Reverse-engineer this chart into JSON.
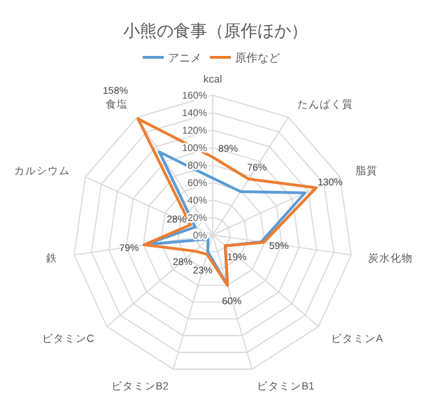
{
  "chart_data": {
    "type": "radar",
    "title": "小熊の食事（原作ほか）",
    "categories": [
      "kcal",
      "たんぱく質",
      "脂質",
      "炭水化物",
      "ビタミンA",
      "ビタミンB1",
      "ビタミンB2",
      "ビタミンC",
      "鉄",
      "カルシウム",
      "食塩"
    ],
    "series": [
      {
        "name": "アニメ",
        "color": "#5b9bd5",
        "values": [
          65,
          59,
          116,
          56,
          19,
          60,
          20,
          7,
          79,
          22,
          113
        ]
      },
      {
        "name": "原作など",
        "color": "#ed7d31",
        "values": [
          89,
          76,
          130,
          59,
          19,
          60,
          23,
          28,
          79,
          28,
          158
        ],
        "value_labels": [
          "89%",
          "76%",
          "130%",
          "59%",
          "19%",
          "60%",
          "23%",
          "28%",
          "79%",
          "28%",
          "158%"
        ]
      }
    ],
    "ylim": [
      0,
      160
    ],
    "yticks": [
      {
        "value": 0,
        "label": "0%"
      },
      {
        "value": 20,
        "label": "20%"
      },
      {
        "value": 40,
        "label": "40%"
      },
      {
        "value": 60,
        "label": "60%"
      },
      {
        "value": 80,
        "label": "80%"
      },
      {
        "value": 100,
        "label": "100%"
      },
      {
        "value": 120,
        "label": "120%"
      },
      {
        "value": 140,
        "label": "140%"
      },
      {
        "value": 160,
        "label": "160%"
      }
    ],
    "grid": true,
    "legend": "top",
    "line_style": "solid"
  }
}
